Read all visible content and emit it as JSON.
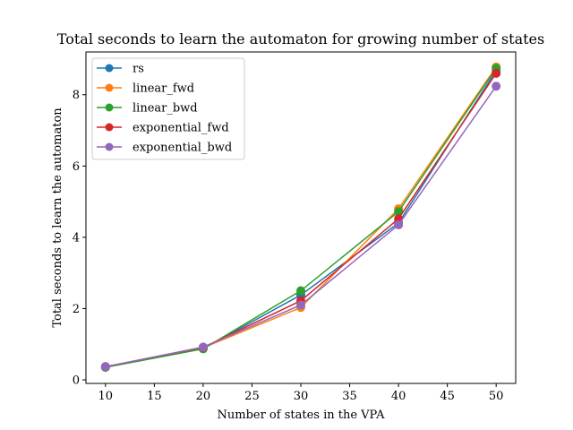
{
  "chart_data": {
    "type": "line",
    "title": "Total seconds to learn the automaton for growing number of states",
    "xlabel": "Number of states in the VPA",
    "ylabel": "Total seconds to learn the automaton",
    "x": [
      10,
      20,
      30,
      40,
      50
    ],
    "xlim": [
      8,
      52
    ],
    "ylim": [
      -0.1,
      9.2
    ],
    "xticks": [
      10,
      15,
      20,
      25,
      30,
      35,
      40,
      45,
      50
    ],
    "yticks": [
      0,
      2,
      4,
      6,
      8
    ],
    "grid": false,
    "legend_position": "top-left",
    "series": [
      {
        "name": "rs",
        "color": "#1f77b4",
        "values": [
          0.37,
          0.88,
          2.38,
          4.4,
          8.68
        ]
      },
      {
        "name": "linear_fwd",
        "color": "#ff7f0e",
        "values": [
          0.36,
          0.9,
          2.03,
          4.8,
          8.78
        ]
      },
      {
        "name": "linear_bwd",
        "color": "#2ca02c",
        "values": [
          0.35,
          0.87,
          2.5,
          4.72,
          8.74
        ]
      },
      {
        "name": "exponential_fwd",
        "color": "#d62728",
        "values": [
          0.37,
          0.91,
          2.22,
          4.52,
          8.6
        ]
      },
      {
        "name": "exponential_bwd",
        "color": "#9467bd",
        "values": [
          0.37,
          0.92,
          2.1,
          4.35,
          8.24
        ]
      }
    ]
  }
}
